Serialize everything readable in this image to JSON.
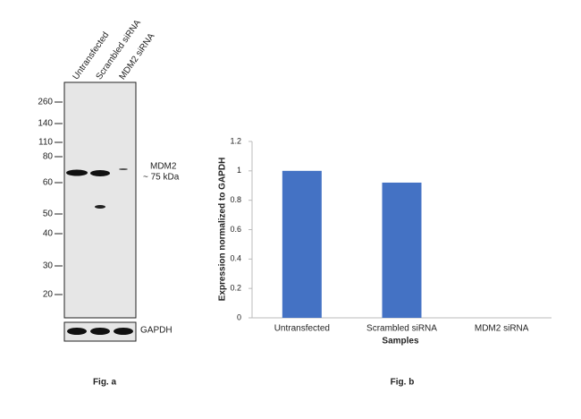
{
  "western_blot": {
    "lanes": [
      "Untransfected",
      "Scrambled siRNA",
      "MDM2 siRNA"
    ],
    "markers": [
      260,
      140,
      110,
      80,
      60,
      50,
      40,
      30,
      20
    ],
    "band_label": "MDM2",
    "band_size": "~ 75 kDa",
    "loading_control": "GAPDH",
    "caption": "Fig. a"
  },
  "chart_data": {
    "type": "bar",
    "categories": [
      "Untransfected",
      "Scrambled siRNA",
      "MDM2 siRNA"
    ],
    "values": [
      1,
      0.92,
      0
    ],
    "color": "#4472c4",
    "ylim": [
      0,
      1.2
    ],
    "yticks": [
      0,
      0.2,
      0.4,
      0.6,
      0.8,
      1,
      1.2
    ],
    "x_label": "Samples",
    "y_label": "Expression normalized to GAPDH",
    "caption": "Fig. b"
  }
}
